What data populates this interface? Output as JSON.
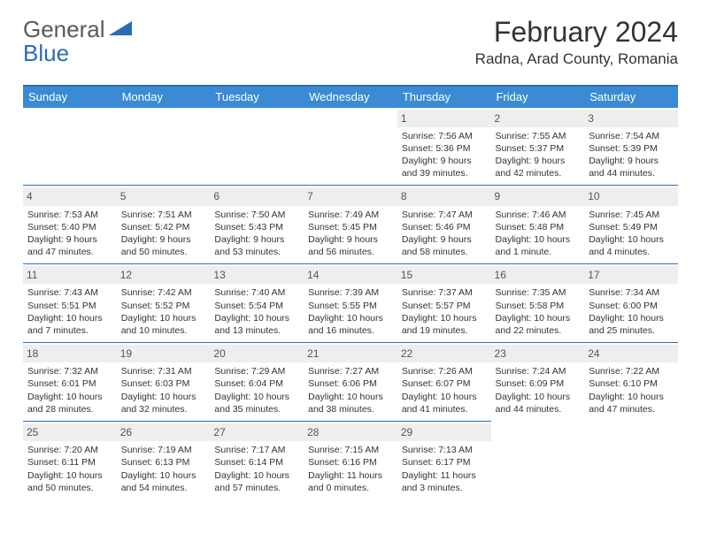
{
  "logo": {
    "text1": "General",
    "text2": "Blue"
  },
  "title": "February 2024",
  "location": "Radna, Arad County, Romania",
  "colors": {
    "header_bg": "#3a8bd4",
    "header_text": "#ffffff",
    "rule": "#2a6db5",
    "daynum_bg": "#eeeeee",
    "text": "#333333",
    "logo_gray": "#5a5a5a",
    "logo_blue": "#2a6db5"
  },
  "weekdays": [
    "Sunday",
    "Monday",
    "Tuesday",
    "Wednesday",
    "Thursday",
    "Friday",
    "Saturday"
  ],
  "weeks": [
    [
      null,
      null,
      null,
      null,
      {
        "d": "1",
        "sunrise": "7:56 AM",
        "sunset": "5:36 PM",
        "daylight": "9 hours and 39 minutes."
      },
      {
        "d": "2",
        "sunrise": "7:55 AM",
        "sunset": "5:37 PM",
        "daylight": "9 hours and 42 minutes."
      },
      {
        "d": "3",
        "sunrise": "7:54 AM",
        "sunset": "5:39 PM",
        "daylight": "9 hours and 44 minutes."
      }
    ],
    [
      {
        "d": "4",
        "sunrise": "7:53 AM",
        "sunset": "5:40 PM",
        "daylight": "9 hours and 47 minutes."
      },
      {
        "d": "5",
        "sunrise": "7:51 AM",
        "sunset": "5:42 PM",
        "daylight": "9 hours and 50 minutes."
      },
      {
        "d": "6",
        "sunrise": "7:50 AM",
        "sunset": "5:43 PM",
        "daylight": "9 hours and 53 minutes."
      },
      {
        "d": "7",
        "sunrise": "7:49 AM",
        "sunset": "5:45 PM",
        "daylight": "9 hours and 56 minutes."
      },
      {
        "d": "8",
        "sunrise": "7:47 AM",
        "sunset": "5:46 PM",
        "daylight": "9 hours and 58 minutes."
      },
      {
        "d": "9",
        "sunrise": "7:46 AM",
        "sunset": "5:48 PM",
        "daylight": "10 hours and 1 minute."
      },
      {
        "d": "10",
        "sunrise": "7:45 AM",
        "sunset": "5:49 PM",
        "daylight": "10 hours and 4 minutes."
      }
    ],
    [
      {
        "d": "11",
        "sunrise": "7:43 AM",
        "sunset": "5:51 PM",
        "daylight": "10 hours and 7 minutes."
      },
      {
        "d": "12",
        "sunrise": "7:42 AM",
        "sunset": "5:52 PM",
        "daylight": "10 hours and 10 minutes."
      },
      {
        "d": "13",
        "sunrise": "7:40 AM",
        "sunset": "5:54 PM",
        "daylight": "10 hours and 13 minutes."
      },
      {
        "d": "14",
        "sunrise": "7:39 AM",
        "sunset": "5:55 PM",
        "daylight": "10 hours and 16 minutes."
      },
      {
        "d": "15",
        "sunrise": "7:37 AM",
        "sunset": "5:57 PM",
        "daylight": "10 hours and 19 minutes."
      },
      {
        "d": "16",
        "sunrise": "7:35 AM",
        "sunset": "5:58 PM",
        "daylight": "10 hours and 22 minutes."
      },
      {
        "d": "17",
        "sunrise": "7:34 AM",
        "sunset": "6:00 PM",
        "daylight": "10 hours and 25 minutes."
      }
    ],
    [
      {
        "d": "18",
        "sunrise": "7:32 AM",
        "sunset": "6:01 PM",
        "daylight": "10 hours and 28 minutes."
      },
      {
        "d": "19",
        "sunrise": "7:31 AM",
        "sunset": "6:03 PM",
        "daylight": "10 hours and 32 minutes."
      },
      {
        "d": "20",
        "sunrise": "7:29 AM",
        "sunset": "6:04 PM",
        "daylight": "10 hours and 35 minutes."
      },
      {
        "d": "21",
        "sunrise": "7:27 AM",
        "sunset": "6:06 PM",
        "daylight": "10 hours and 38 minutes."
      },
      {
        "d": "22",
        "sunrise": "7:26 AM",
        "sunset": "6:07 PM",
        "daylight": "10 hours and 41 minutes."
      },
      {
        "d": "23",
        "sunrise": "7:24 AM",
        "sunset": "6:09 PM",
        "daylight": "10 hours and 44 minutes."
      },
      {
        "d": "24",
        "sunrise": "7:22 AM",
        "sunset": "6:10 PM",
        "daylight": "10 hours and 47 minutes."
      }
    ],
    [
      {
        "d": "25",
        "sunrise": "7:20 AM",
        "sunset": "6:11 PM",
        "daylight": "10 hours and 50 minutes."
      },
      {
        "d": "26",
        "sunrise": "7:19 AM",
        "sunset": "6:13 PM",
        "daylight": "10 hours and 54 minutes."
      },
      {
        "d": "27",
        "sunrise": "7:17 AM",
        "sunset": "6:14 PM",
        "daylight": "10 hours and 57 minutes."
      },
      {
        "d": "28",
        "sunrise": "7:15 AM",
        "sunset": "6:16 PM",
        "daylight": "11 hours and 0 minutes."
      },
      {
        "d": "29",
        "sunrise": "7:13 AM",
        "sunset": "6:17 PM",
        "daylight": "11 hours and 3 minutes."
      },
      null,
      null
    ]
  ],
  "labels": {
    "sunrise": "Sunrise: ",
    "sunset": "Sunset: ",
    "daylight": "Daylight: "
  }
}
